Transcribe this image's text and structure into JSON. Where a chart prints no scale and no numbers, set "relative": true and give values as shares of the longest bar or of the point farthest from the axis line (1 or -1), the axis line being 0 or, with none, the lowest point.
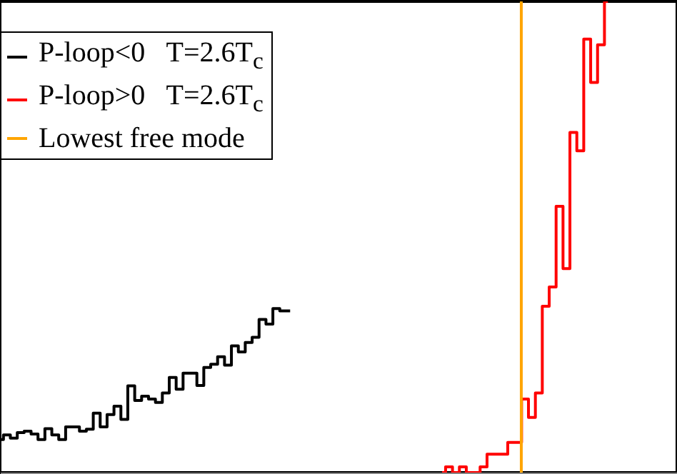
{
  "chart_data": {
    "type": "step",
    "relative": true,
    "legend": "top left",
    "categories": [
      null,
      null,
      null,
      null,
      null,
      null,
      null,
      null,
      null,
      null,
      null,
      null,
      null,
      null,
      null,
      null,
      null,
      null,
      null,
      null,
      null,
      null,
      null,
      null,
      null,
      null,
      null,
      null,
      null,
      null,
      null,
      null,
      null,
      null,
      null,
      null,
      null,
      null,
      null,
      null,
      null,
      null,
      null,
      null,
      null,
      null,
      null,
      null,
      null,
      null,
      null,
      null,
      null,
      null,
      null,
      null,
      null,
      null,
      null,
      null,
      null,
      null,
      null,
      null,
      null,
      null,
      null,
      null,
      null,
      null,
      null,
      null,
      null,
      null,
      null,
      null,
      null,
      null,
      null,
      null,
      null,
      null,
      null,
      null,
      null,
      null,
      null,
      null,
      null,
      null,
      null,
      null,
      null,
      null,
      null,
      null,
      null,
      null,
      null
    ],
    "series": [
      {
        "name": "P-loop<0   T=2.6T$_{c}$",
        "color": "#000000",
        "values": [
          0.07,
          0.08,
          0.073,
          0.085,
          0.088,
          0.082,
          0.07,
          0.093,
          0.08,
          0.07,
          0.097,
          0.097,
          0.088,
          0.092,
          0.126,
          0.097,
          0.123,
          0.141,
          0.113,
          0.184,
          0.153,
          0.162,
          0.156,
          0.149,
          0.169,
          0.202,
          0.177,
          0.211,
          0.211,
          0.185,
          0.223,
          0.23,
          0.246,
          0.228,
          0.269,
          0.256,
          0.276,
          0.287,
          0.325,
          0.315,
          0.348,
          0.343,
          0.343,
          null,
          null,
          null,
          null,
          null,
          null,
          null,
          null,
          null,
          null,
          null,
          null,
          null,
          null,
          null,
          null,
          null,
          null,
          null,
          null,
          null,
          null,
          null,
          null,
          null,
          null,
          null,
          null,
          null,
          null,
          null,
          null,
          null,
          null,
          null,
          null,
          null,
          null,
          null,
          null,
          null,
          null,
          null,
          null,
          null,
          null,
          null,
          null,
          null,
          null,
          null,
          null,
          null,
          null,
          null,
          null
        ]
      },
      {
        "name": "P-loop>0   T=2.6T$_{c}$",
        "color": "#ff0000",
        "values": [
          null,
          null,
          null,
          null,
          null,
          null,
          null,
          null,
          null,
          null,
          null,
          null,
          null,
          null,
          null,
          null,
          null,
          null,
          null,
          null,
          null,
          null,
          null,
          null,
          null,
          null,
          null,
          null,
          null,
          null,
          null,
          null,
          null,
          null,
          null,
          null,
          null,
          null,
          null,
          null,
          null,
          null,
          null,
          null,
          null,
          null,
          null,
          null,
          null,
          null,
          null,
          null,
          null,
          null,
          null,
          null,
          null,
          null,
          null,
          null,
          null,
          null,
          null,
          null,
          0,
          0.012,
          0,
          0.012,
          0,
          0,
          0.012,
          0.039,
          0.039,
          0.039,
          0.064,
          0.064,
          0.156,
          0.117,
          0.169,
          0.353,
          0.394,
          0.565,
          0.433,
          0.722,
          0.683,
          0.92,
          0.828,
          0.908,
          1.0,
          null,
          null,
          null,
          null,
          null,
          null,
          null,
          null,
          null,
          null
        ]
      }
    ],
    "annotations": [
      "Lowest free mode"
    ]
  }
}
